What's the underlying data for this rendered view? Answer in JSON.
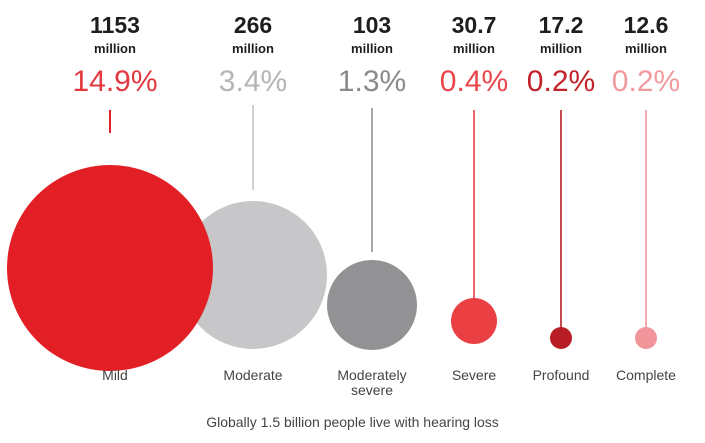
{
  "chart_data": {
    "type": "bubble",
    "title": "",
    "caption": "Globally 1.5 billion people live with hearing loss",
    "unit_label": "million",
    "categories": [
      {
        "name": "Mild",
        "label": "Mild",
        "value_display": "1153",
        "value": 1153,
        "percent": "14.9%",
        "color": "#e31f26",
        "percent_color": "#e0393f"
      },
      {
        "name": "Moderate",
        "label": "Moderate",
        "value_display": "266",
        "value": 266,
        "percent": "3.4%",
        "color": "#c7c7c9",
        "percent_color": "#b5b5b7"
      },
      {
        "name": "Moderately severe",
        "label": "Moderately severe",
        "label_lines": [
          "Moderately",
          "severe"
        ],
        "value_display": "103",
        "value": 103,
        "percent": "1.3%",
        "color": "#929295",
        "percent_color": "#8a8a8d"
      },
      {
        "name": "Severe",
        "label": "Severe",
        "value_display": "30.7",
        "value": 30.7,
        "percent": "0.4%",
        "color": "#ea4043",
        "percent_color": "#e8464a"
      },
      {
        "name": "Profound",
        "label": "Profound",
        "value_display": "17.2",
        "value": 17.2,
        "percent": "0.2%",
        "color": "#b81c24",
        "percent_color": "#c22229"
      },
      {
        "name": "Complete",
        "label": "Complete",
        "value_display": "12.6",
        "value": 12.6,
        "percent": "0.2%",
        "color": "#f1959a",
        "percent_color": "#f19a9e"
      }
    ]
  }
}
